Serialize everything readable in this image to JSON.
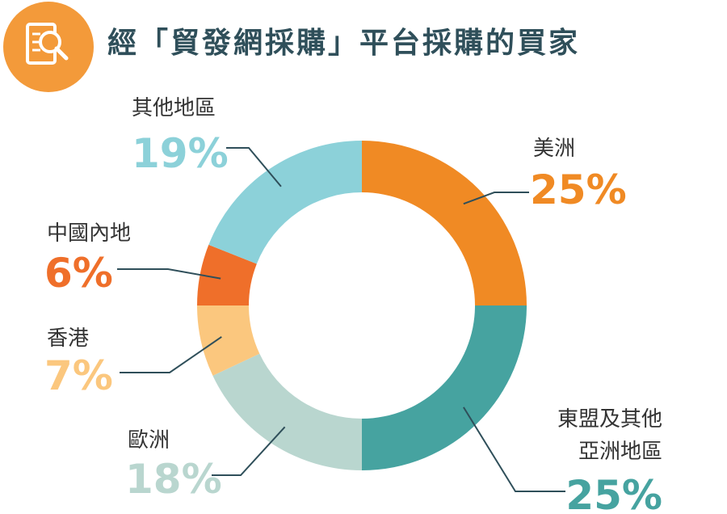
{
  "header": {
    "title": "經「貿發網採購」平台採購的買家",
    "icon": "document-search-icon",
    "badge_color": "#F39A3A"
  },
  "chart_data": {
    "type": "pie",
    "donut": true,
    "title": "經「貿發網採購」平台採購的買家",
    "slices": [
      {
        "name": "美洲",
        "value": 25,
        "pct_label": "25%",
        "color": "#F08A24"
      },
      {
        "name": "東盟及其他亞洲地區",
        "name_lines": [
          "東盟及其他",
          "亞洲地區"
        ],
        "value": 25,
        "pct_label": "25%",
        "color": "#46A3A0"
      },
      {
        "name": "歐洲",
        "value": 18,
        "pct_label": "18%",
        "color": "#B9D6CF"
      },
      {
        "name": "香港",
        "value": 7,
        "pct_label": "7%",
        "color": "#FBC77E"
      },
      {
        "name": "中國內地",
        "value": 6,
        "pct_label": "6%",
        "color": "#EF6F2A"
      },
      {
        "name": "其他地區",
        "value": 19,
        "pct_label": "19%",
        "color": "#8CD1D9"
      }
    ]
  }
}
